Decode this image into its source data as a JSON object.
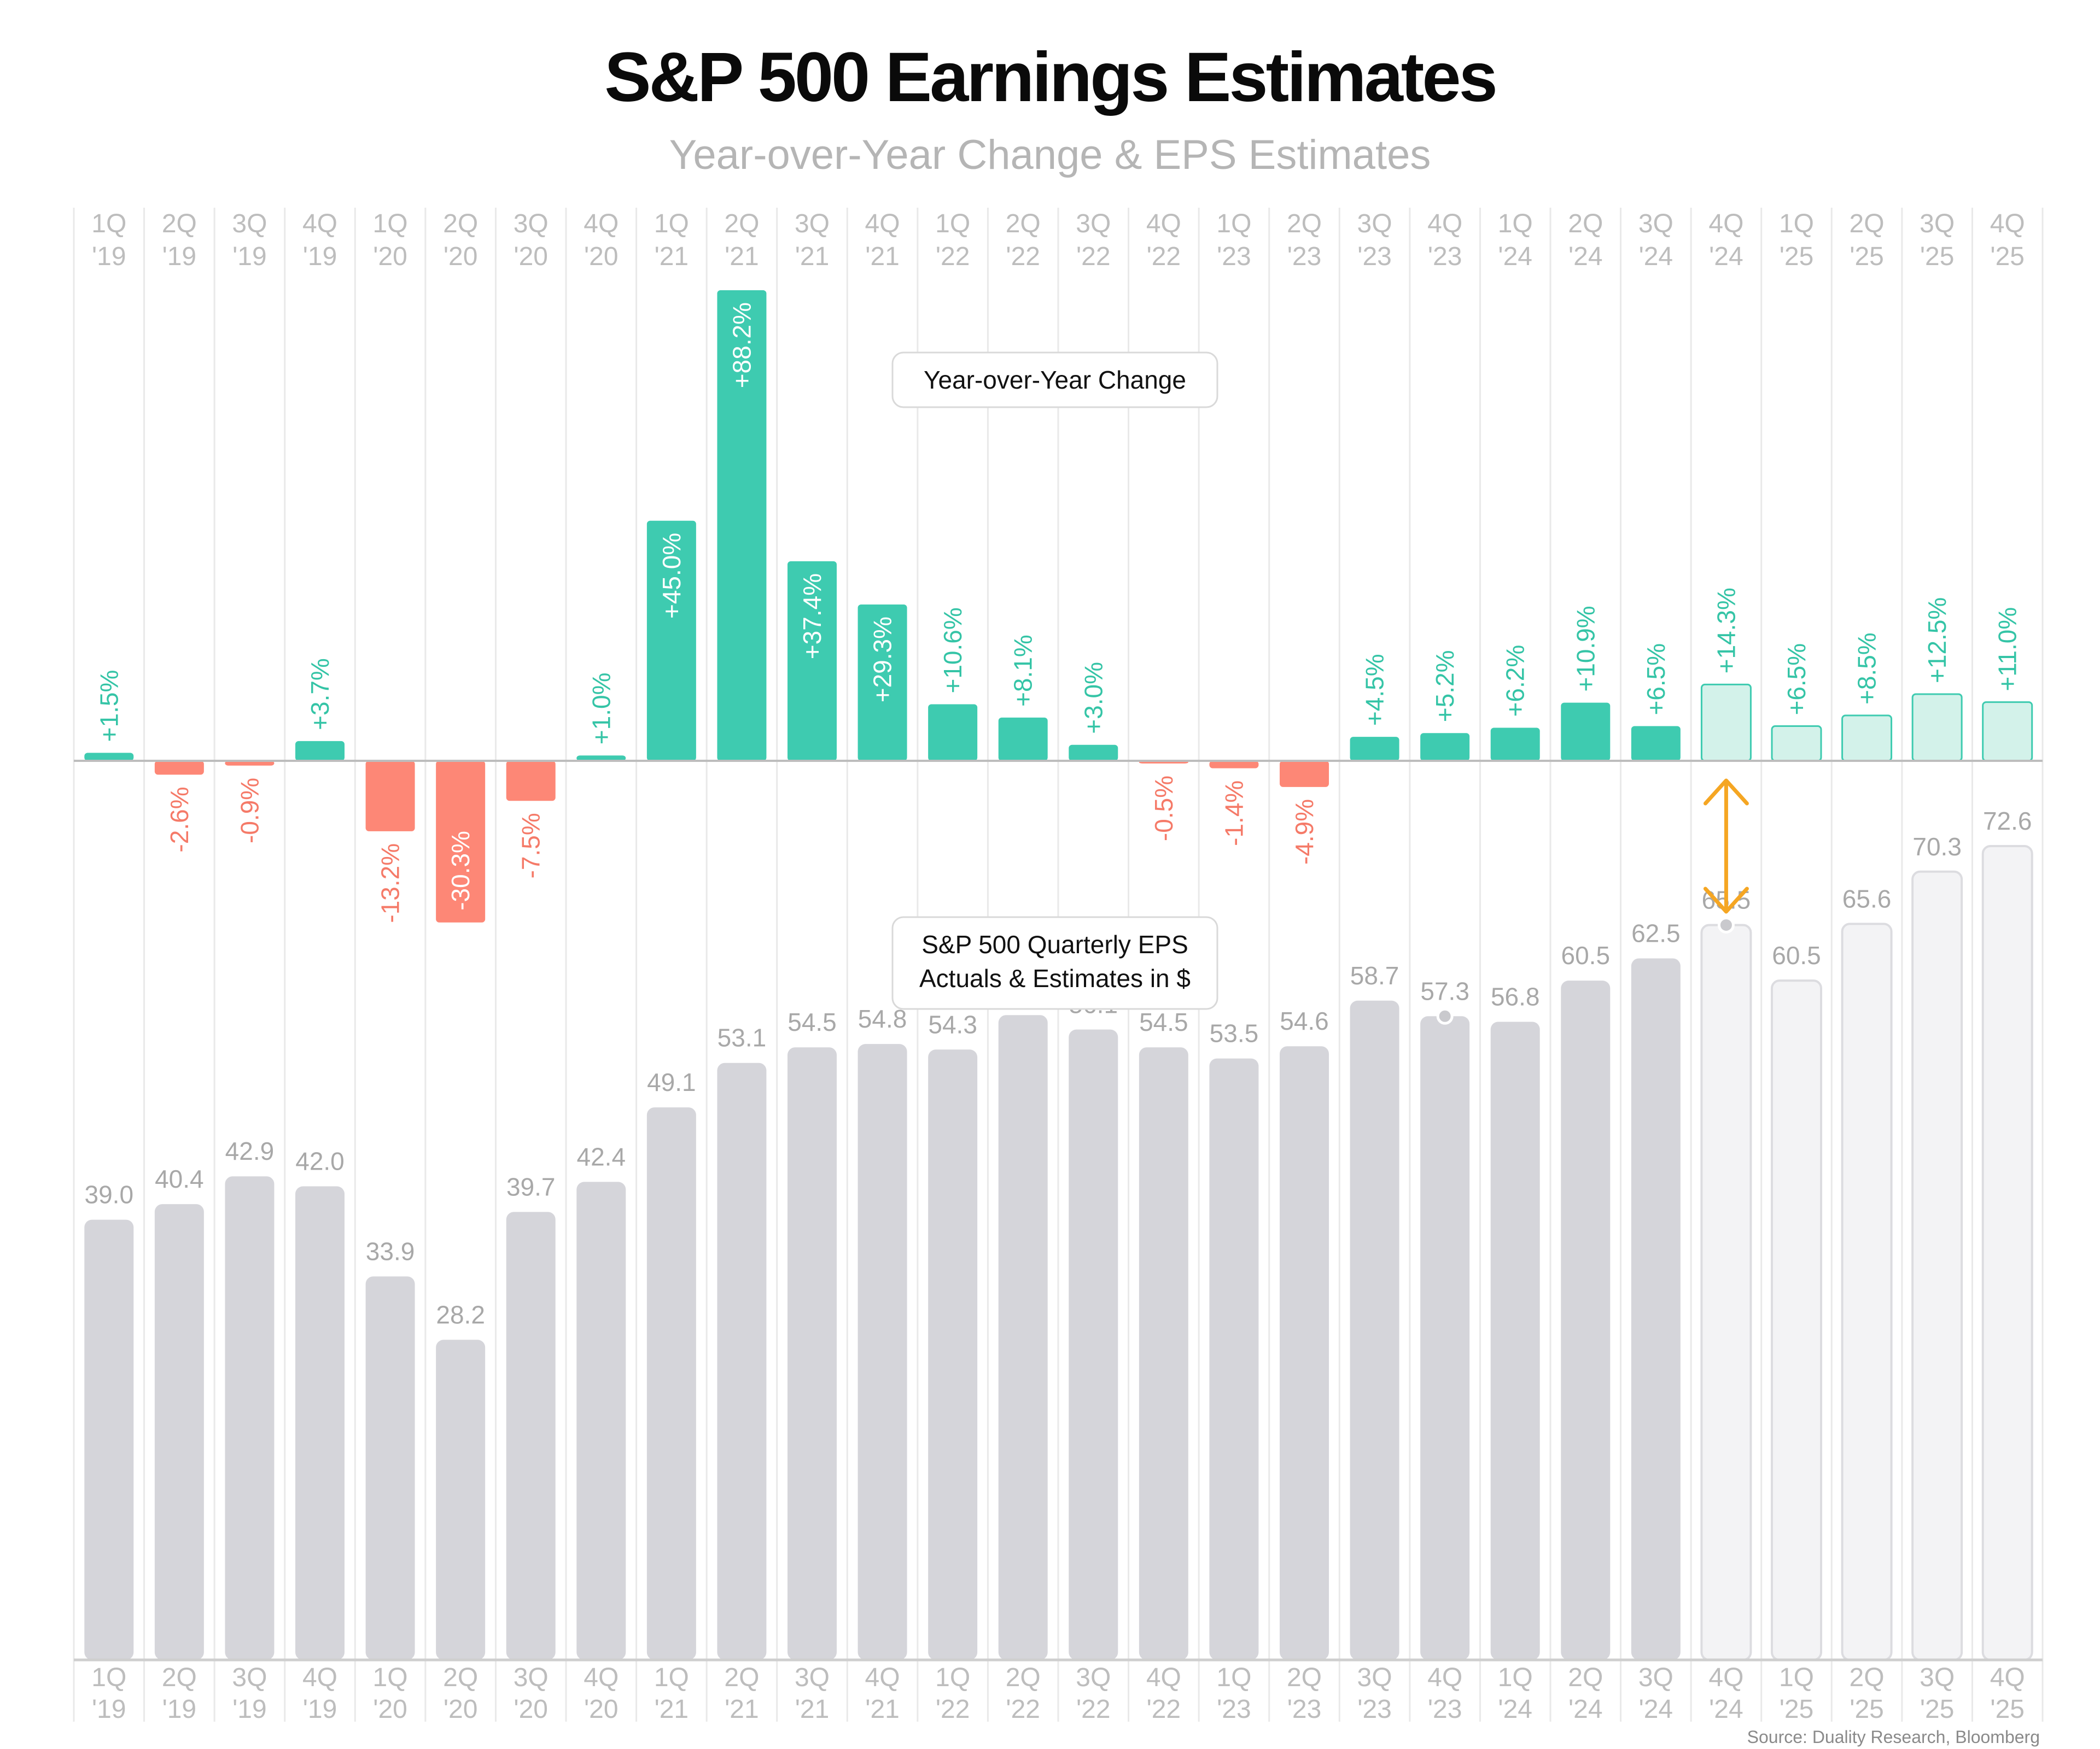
{
  "chart_data": {
    "type": "bar",
    "title": "S&P 500 Earnings Estimates",
    "subtitle": "Year-over-Year Change & EPS Estimates",
    "categories": [
      {
        "q": "1Q",
        "y": "'19"
      },
      {
        "q": "2Q",
        "y": "'19"
      },
      {
        "q": "3Q",
        "y": "'19"
      },
      {
        "q": "4Q",
        "y": "'19"
      },
      {
        "q": "1Q",
        "y": "'20"
      },
      {
        "q": "2Q",
        "y": "'20"
      },
      {
        "q": "3Q",
        "y": "'20"
      },
      {
        "q": "4Q",
        "y": "'20"
      },
      {
        "q": "1Q",
        "y": "'21"
      },
      {
        "q": "2Q",
        "y": "'21"
      },
      {
        "q": "3Q",
        "y": "'21"
      },
      {
        "q": "4Q",
        "y": "'21"
      },
      {
        "q": "1Q",
        "y": "'22"
      },
      {
        "q": "2Q",
        "y": "'22"
      },
      {
        "q": "3Q",
        "y": "'22"
      },
      {
        "q": "4Q",
        "y": "'22"
      },
      {
        "q": "1Q",
        "y": "'23"
      },
      {
        "q": "2Q",
        "y": "'23"
      },
      {
        "q": "3Q",
        "y": "'23"
      },
      {
        "q": "4Q",
        "y": "'23"
      },
      {
        "q": "1Q",
        "y": "'24"
      },
      {
        "q": "2Q",
        "y": "'24"
      },
      {
        "q": "3Q",
        "y": "'24"
      },
      {
        "q": "4Q",
        "y": "'24"
      },
      {
        "q": "1Q",
        "y": "'25"
      },
      {
        "q": "2Q",
        "y": "'25"
      },
      {
        "q": "3Q",
        "y": "'25"
      },
      {
        "q": "4Q",
        "y": "'25"
      }
    ],
    "series": [
      {
        "name": "Year-over-Year Change",
        "values": [
          1.5,
          -2.6,
          -0.9,
          3.7,
          -13.2,
          -30.3,
          -7.5,
          1.0,
          45.0,
          88.2,
          37.4,
          29.3,
          10.6,
          8.1,
          3.0,
          -0.5,
          -1.4,
          -4.9,
          4.5,
          5.2,
          6.2,
          10.9,
          6.5,
          14.3,
          6.5,
          8.5,
          12.5,
          11.0
        ],
        "labels": [
          "+1.5%",
          "-2.6%",
          "-0.9%",
          "+3.7%",
          "-13.2%",
          "-30.3%",
          "-7.5%",
          "+1.0%",
          "+45.0%",
          "+88.2%",
          "+37.4%",
          "+29.3%",
          "+10.6%",
          "+8.1%",
          "+3.0%",
          "-0.5%",
          "-1.4%",
          "-4.9%",
          "+4.5%",
          "+5.2%",
          "+6.2%",
          "+10.9%",
          "+6.5%",
          "+14.3%",
          "+6.5%",
          "+8.5%",
          "+12.5%",
          "+11.0%"
        ]
      },
      {
        "name": "S&P 500 Quarterly EPS Actuals & Estimates in $",
        "values": [
          39.0,
          40.4,
          42.9,
          42.0,
          33.9,
          28.2,
          39.7,
          42.4,
          49.1,
          53.1,
          54.5,
          54.8,
          54.3,
          57.4,
          56.1,
          54.5,
          53.5,
          54.6,
          58.7,
          57.3,
          56.8,
          60.5,
          62.5,
          65.5,
          60.5,
          65.6,
          70.3,
          72.6
        ],
        "labels": [
          "39.0",
          "40.4",
          "42.9",
          "42.0",
          "33.9",
          "28.2",
          "39.7",
          "42.4",
          "49.1",
          "53.1",
          "54.5",
          "54.8",
          "54.3",
          "57.4",
          "56.1",
          "54.5",
          "53.5",
          "54.6",
          "58.7",
          "57.3",
          "56.8",
          "60.5",
          "62.5",
          "65.5",
          "60.5",
          "65.6",
          "70.3",
          "72.6"
        ]
      }
    ],
    "estimate_start_index": 23,
    "marked_points": [
      19,
      23
    ],
    "annotations": {
      "yoy_box": "Year-over-Year Change",
      "eps_box_line1": "S&P 500 Quarterly EPS",
      "eps_box_line2": "Actuals & Estimates in $"
    },
    "colors": {
      "positive": "#3ecbb0",
      "positive_estimate_fill": "#d3f2ea",
      "negative": "#fd8776",
      "eps": "#d5d5da",
      "eps_estimate_fill": "#f3f3f5",
      "eps_estimate_stroke": "#dcdce0",
      "arrow": "#f5a623",
      "positive_label": "#34c4a6",
      "negative_label": "#f57a68",
      "eps_label": "#a8a8a8",
      "axis_label": "#bdbdbd"
    },
    "source": "Source: Duality Research, Bloomberg"
  }
}
